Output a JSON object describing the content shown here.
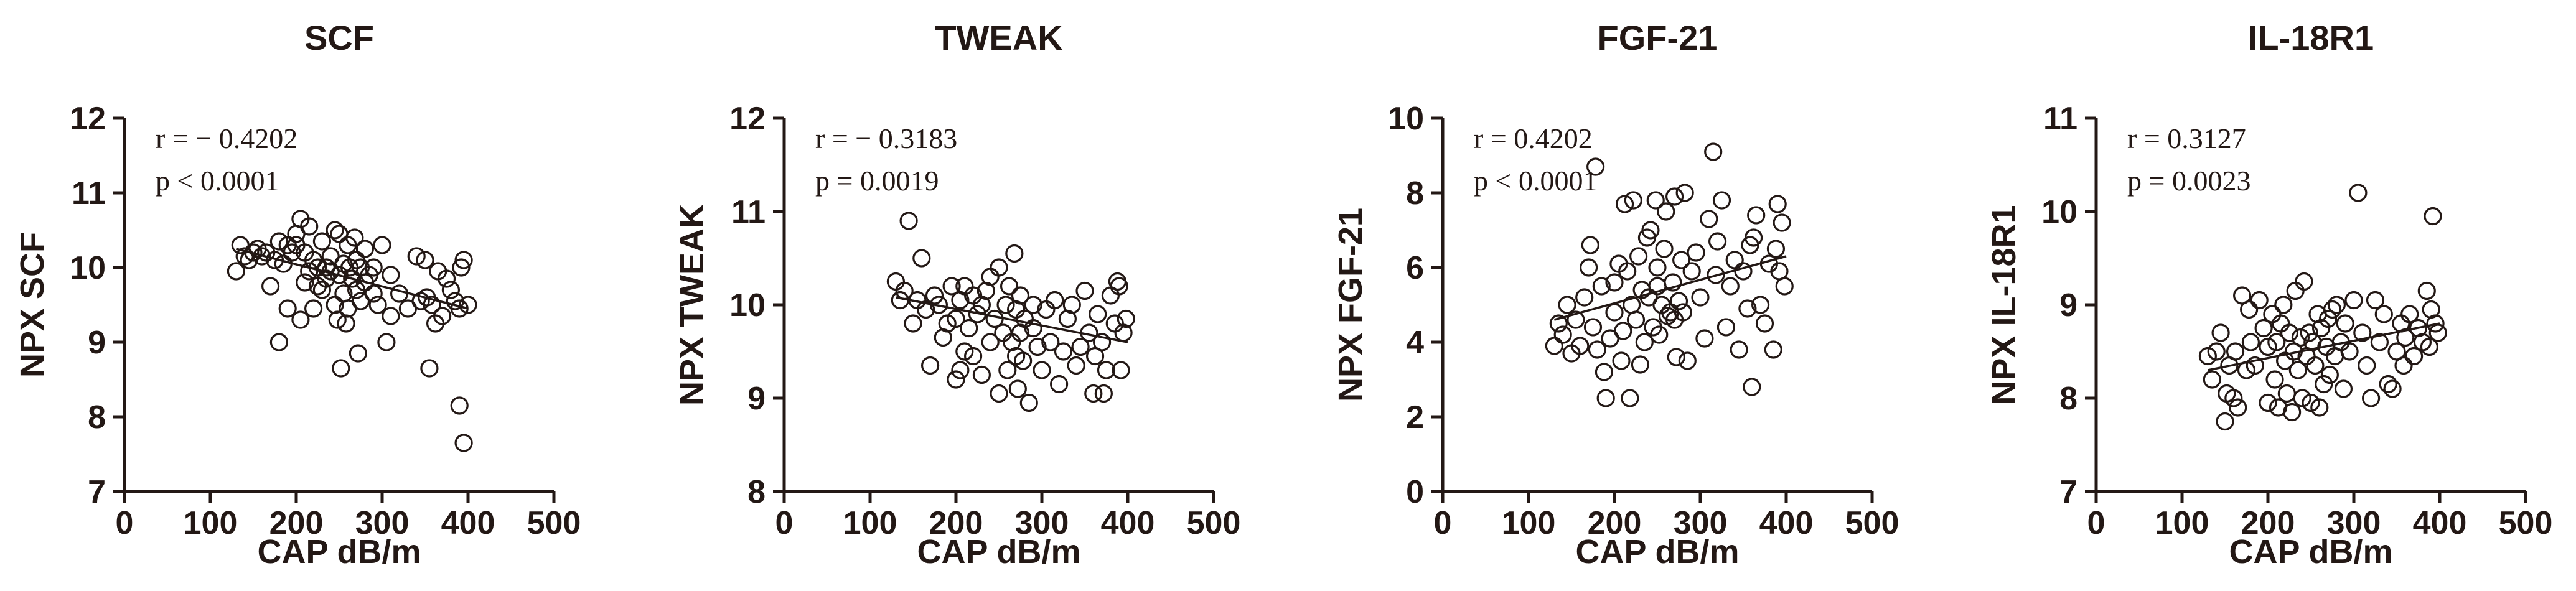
{
  "chart_data": [
    {
      "type": "scatter",
      "title": "SCF",
      "xlabel": "CAP dB/m",
      "ylabel": "NPX  SCF",
      "xlim": [
        0,
        500
      ],
      "ylim": [
        7,
        12
      ],
      "xticks": [
        0,
        100,
        200,
        300,
        400,
        500
      ],
      "yticks": [
        7,
        8,
        9,
        10,
        11,
        12
      ],
      "stats": [
        "r = − 0.4202",
        "p < 0.0001"
      ],
      "fit_line": {
        "x": [
          130,
          400
        ],
        "y": [
          10.25,
          9.45
        ]
      },
      "points": [
        [
          130,
          9.95
        ],
        [
          135,
          10.3
        ],
        [
          140,
          10.15
        ],
        [
          145,
          10.1
        ],
        [
          150,
          10.2
        ],
        [
          155,
          10.25
        ],
        [
          160,
          10.15
        ],
        [
          165,
          10.2
        ],
        [
          170,
          9.75
        ],
        [
          175,
          10.1
        ],
        [
          180,
          10.35
        ],
        [
          180,
          9.0
        ],
        [
          185,
          10.05
        ],
        [
          190,
          10.3
        ],
        [
          190,
          9.45
        ],
        [
          195,
          10.2
        ],
        [
          200,
          10.45
        ],
        [
          200,
          10.3
        ],
        [
          205,
          10.65
        ],
        [
          205,
          9.3
        ],
        [
          210,
          10.2
        ],
        [
          210,
          9.8
        ],
        [
          215,
          10.55
        ],
        [
          215,
          9.95
        ],
        [
          220,
          10.1
        ],
        [
          220,
          9.45
        ],
        [
          225,
          9.75
        ],
        [
          225,
          10.0
        ],
        [
          230,
          10.35
        ],
        [
          230,
          9.7
        ],
        [
          235,
          9.85
        ],
        [
          235,
          10.0
        ],
        [
          240,
          10.15
        ],
        [
          240,
          9.95
        ],
        [
          245,
          10.5
        ],
        [
          245,
          9.5
        ],
        [
          248,
          9.3
        ],
        [
          250,
          10.45
        ],
        [
          250,
          9.9
        ],
        [
          252,
          8.65
        ],
        [
          255,
          10.05
        ],
        [
          255,
          9.65
        ],
        [
          258,
          9.25
        ],
        [
          260,
          10.3
        ],
        [
          260,
          9.45
        ],
        [
          262,
          10.0
        ],
        [
          265,
          9.85
        ],
        [
          268,
          10.4
        ],
        [
          270,
          10.1
        ],
        [
          270,
          9.7
        ],
        [
          272,
          8.85
        ],
        [
          275,
          10.0
        ],
        [
          275,
          9.55
        ],
        [
          280,
          9.8
        ],
        [
          280,
          10.25
        ],
        [
          285,
          9.9
        ],
        [
          290,
          10.0
        ],
        [
          290,
          9.65
        ],
        [
          295,
          9.5
        ],
        [
          300,
          10.3
        ],
        [
          305,
          9.0
        ],
        [
          310,
          9.35
        ],
        [
          310,
          9.9
        ],
        [
          320,
          9.65
        ],
        [
          330,
          9.45
        ],
        [
          340,
          10.15
        ],
        [
          345,
          9.55
        ],
        [
          350,
          10.1
        ],
        [
          352,
          9.6
        ],
        [
          355,
          8.65
        ],
        [
          358,
          9.5
        ],
        [
          362,
          9.25
        ],
        [
          365,
          9.95
        ],
        [
          370,
          9.35
        ],
        [
          375,
          9.85
        ],
        [
          380,
          9.7
        ],
        [
          385,
          9.55
        ],
        [
          390,
          9.45
        ],
        [
          392,
          10.0
        ],
        [
          395,
          10.1
        ],
        [
          390,
          8.15
        ],
        [
          395,
          7.65
        ],
        [
          400,
          9.5
        ]
      ]
    },
    {
      "type": "scatter",
      "title": "TWEAK",
      "xlabel": "CAP dB/m",
      "ylabel": "NPX TWEAK",
      "xlim": [
        0,
        500
      ],
      "ylim": [
        8,
        12
      ],
      "xticks": [
        0,
        100,
        200,
        300,
        400,
        500
      ],
      "yticks": [
        8,
        9,
        10,
        11,
        12
      ],
      "stats": [
        "r = − 0.3183",
        "p = 0.0019"
      ],
      "fit_line": {
        "x": [
          130,
          400
        ],
        "y": [
          10.08,
          9.6
        ]
      },
      "points": [
        [
          130,
          10.25
        ],
        [
          135,
          10.05
        ],
        [
          140,
          10.15
        ],
        [
          145,
          10.9
        ],
        [
          150,
          9.8
        ],
        [
          155,
          10.05
        ],
        [
          160,
          10.5
        ],
        [
          165,
          9.95
        ],
        [
          170,
          9.35
        ],
        [
          175,
          10.1
        ],
        [
          180,
          10.0
        ],
        [
          185,
          9.65
        ],
        [
          190,
          9.8
        ],
        [
          195,
          10.2
        ],
        [
          200,
          9.2
        ],
        [
          200,
          9.85
        ],
        [
          205,
          9.3
        ],
        [
          205,
          10.05
        ],
        [
          210,
          9.5
        ],
        [
          210,
          10.2
        ],
        [
          215,
          9.75
        ],
        [
          220,
          10.1
        ],
        [
          220,
          9.45
        ],
        [
          225,
          9.9
        ],
        [
          230,
          10.0
        ],
        [
          230,
          9.25
        ],
        [
          235,
          10.15
        ],
        [
          240,
          9.6
        ],
        [
          240,
          10.3
        ],
        [
          245,
          9.85
        ],
        [
          250,
          10.4
        ],
        [
          250,
          9.05
        ],
        [
          255,
          9.7
        ],
        [
          258,
          10.0
        ],
        [
          260,
          9.3
        ],
        [
          262,
          10.2
        ],
        [
          265,
          9.6
        ],
        [
          268,
          10.55
        ],
        [
          270,
          9.45
        ],
        [
          270,
          9.95
        ],
        [
          272,
          9.1
        ],
        [
          275,
          10.1
        ],
        [
          275,
          9.7
        ],
        [
          278,
          9.4
        ],
        [
          280,
          9.85
        ],
        [
          285,
          8.95
        ],
        [
          290,
          9.75
        ],
        [
          290,
          10.0
        ],
        [
          295,
          9.55
        ],
        [
          300,
          9.3
        ],
        [
          305,
          9.95
        ],
        [
          310,
          9.6
        ],
        [
          315,
          10.05
        ],
        [
          320,
          9.15
        ],
        [
          325,
          9.5
        ],
        [
          330,
          9.85
        ],
        [
          335,
          10.0
        ],
        [
          340,
          9.35
        ],
        [
          345,
          9.55
        ],
        [
          350,
          10.15
        ],
        [
          355,
          9.7
        ],
        [
          360,
          9.05
        ],
        [
          362,
          9.45
        ],
        [
          365,
          9.9
        ],
        [
          370,
          9.6
        ],
        [
          372,
          9.05
        ],
        [
          375,
          9.3
        ],
        [
          380,
          10.1
        ],
        [
          385,
          9.8
        ],
        [
          388,
          10.25
        ],
        [
          390,
          10.2
        ],
        [
          392,
          9.3
        ],
        [
          395,
          9.7
        ],
        [
          398,
          9.85
        ]
      ]
    },
    {
      "type": "scatter",
      "title": "FGF-21",
      "xlabel": "CAP dB/m",
      "ylabel": "NPX FGF-21",
      "xlim": [
        0,
        500
      ],
      "ylim": [
        0,
        10
      ],
      "xticks": [
        0,
        100,
        200,
        300,
        400,
        500
      ],
      "yticks": [
        0,
        2,
        4,
        6,
        8,
        10
      ],
      "stats": [
        "r = 0.4202",
        "p < 0.0001"
      ],
      "fit_line": {
        "x": [
          130,
          400
        ],
        "y": [
          4.6,
          6.3
        ]
      },
      "points": [
        [
          130,
          3.9
        ],
        [
          135,
          4.5
        ],
        [
          140,
          4.2
        ],
        [
          145,
          5.0
        ],
        [
          150,
          3.7
        ],
        [
          155,
          4.6
        ],
        [
          160,
          3.9
        ],
        [
          165,
          5.2
        ],
        [
          170,
          6.0
        ],
        [
          172,
          6.6
        ],
        [
          175,
          4.4
        ],
        [
          178,
          8.7
        ],
        [
          180,
          3.8
        ],
        [
          185,
          5.5
        ],
        [
          188,
          3.2
        ],
        [
          190,
          2.5
        ],
        [
          195,
          4.1
        ],
        [
          200,
          4.8
        ],
        [
          200,
          5.6
        ],
        [
          205,
          6.1
        ],
        [
          208,
          3.5
        ],
        [
          210,
          4.3
        ],
        [
          212,
          7.7
        ],
        [
          215,
          5.9
        ],
        [
          218,
          2.5
        ],
        [
          220,
          5.0
        ],
        [
          222,
          7.8
        ],
        [
          225,
          4.6
        ],
        [
          228,
          6.3
        ],
        [
          230,
          3.4
        ],
        [
          232,
          5.4
        ],
        [
          235,
          4.0
        ],
        [
          238,
          6.8
        ],
        [
          240,
          5.2
        ],
        [
          242,
          7.0
        ],
        [
          245,
          4.4
        ],
        [
          248,
          7.8
        ],
        [
          250,
          6.0
        ],
        [
          250,
          5.5
        ],
        [
          252,
          4.2
        ],
        [
          255,
          5.0
        ],
        [
          258,
          6.5
        ],
        [
          260,
          7.5
        ],
        [
          262,
          4.7
        ],
        [
          265,
          4.8
        ],
        [
          268,
          5.6
        ],
        [
          270,
          7.9
        ],
        [
          270,
          4.6
        ],
        [
          272,
          3.6
        ],
        [
          275,
          5.1
        ],
        [
          278,
          6.2
        ],
        [
          280,
          4.8
        ],
        [
          282,
          8.0
        ],
        [
          285,
          3.5
        ],
        [
          290,
          5.9
        ],
        [
          295,
          6.4
        ],
        [
          300,
          5.2
        ],
        [
          305,
          4.1
        ],
        [
          310,
          7.3
        ],
        [
          315,
          9.1
        ],
        [
          318,
          5.8
        ],
        [
          320,
          6.7
        ],
        [
          325,
          7.8
        ],
        [
          330,
          4.4
        ],
        [
          335,
          5.5
        ],
        [
          340,
          6.2
        ],
        [
          345,
          3.8
        ],
        [
          350,
          5.9
        ],
        [
          355,
          4.9
        ],
        [
          358,
          6.6
        ],
        [
          360,
          2.8
        ],
        [
          362,
          6.8
        ],
        [
          365,
          7.4
        ],
        [
          370,
          5.0
        ],
        [
          375,
          4.5
        ],
        [
          380,
          6.1
        ],
        [
          385,
          3.8
        ],
        [
          388,
          6.5
        ],
        [
          390,
          7.7
        ],
        [
          392,
          5.9
        ],
        [
          395,
          7.2
        ],
        [
          398,
          5.5
        ]
      ]
    },
    {
      "type": "scatter",
      "title": "IL-18R1",
      "xlabel": "CAP dB/m",
      "ylabel": "NPX IL-18R1",
      "xlim": [
        0,
        500
      ],
      "ylim": [
        7,
        11
      ],
      "xticks": [
        0,
        100,
        200,
        300,
        400,
        500
      ],
      "yticks": [
        7,
        8,
        9,
        10,
        11
      ],
      "stats": [
        "r = 0.3127",
        "p = 0.0023"
      ],
      "fit_line": {
        "x": [
          130,
          400
        ],
        "y": [
          8.3,
          8.8
        ]
      },
      "points": [
        [
          130,
          8.45
        ],
        [
          135,
          8.2
        ],
        [
          140,
          8.5
        ],
        [
          145,
          8.7
        ],
        [
          150,
          7.75
        ],
        [
          152,
          8.05
        ],
        [
          155,
          8.35
        ],
        [
          160,
          8.0
        ],
        [
          162,
          8.5
        ],
        [
          165,
          7.9
        ],
        [
          170,
          9.1
        ],
        [
          175,
          8.3
        ],
        [
          178,
          8.95
        ],
        [
          180,
          8.6
        ],
        [
          185,
          8.35
        ],
        [
          190,
          9.05
        ],
        [
          195,
          8.75
        ],
        [
          200,
          8.55
        ],
        [
          200,
          7.95
        ],
        [
          205,
          8.9
        ],
        [
          208,
          8.2
        ],
        [
          210,
          8.6
        ],
        [
          212,
          7.9
        ],
        [
          215,
          8.8
        ],
        [
          218,
          9.0
        ],
        [
          220,
          8.4
        ],
        [
          222,
          8.05
        ],
        [
          225,
          8.7
        ],
        [
          228,
          7.85
        ],
        [
          230,
          8.5
        ],
        [
          232,
          9.15
        ],
        [
          235,
          8.3
        ],
        [
          238,
          8.65
        ],
        [
          240,
          8.0
        ],
        [
          242,
          9.25
        ],
        [
          245,
          8.45
        ],
        [
          248,
          8.7
        ],
        [
          250,
          7.95
        ],
        [
          252,
          8.6
        ],
        [
          255,
          8.35
        ],
        [
          258,
          8.9
        ],
        [
          260,
          7.9
        ],
        [
          262,
          8.75
        ],
        [
          265,
          8.15
        ],
        [
          268,
          8.55
        ],
        [
          270,
          8.85
        ],
        [
          272,
          8.25
        ],
        [
          275,
          8.95
        ],
        [
          278,
          8.45
        ],
        [
          280,
          9.0
        ],
        [
          285,
          8.6
        ],
        [
          288,
          8.1
        ],
        [
          290,
          8.8
        ],
        [
          295,
          8.5
        ],
        [
          300,
          9.05
        ],
        [
          305,
          10.2
        ],
        [
          310,
          8.7
        ],
        [
          315,
          8.35
        ],
        [
          320,
          8.0
        ],
        [
          325,
          9.05
        ],
        [
          330,
          8.6
        ],
        [
          335,
          8.9
        ],
        [
          340,
          8.15
        ],
        [
          345,
          8.1
        ],
        [
          350,
          8.5
        ],
        [
          355,
          8.8
        ],
        [
          358,
          8.35
        ],
        [
          360,
          8.65
        ],
        [
          365,
          8.9
        ],
        [
          370,
          8.45
        ],
        [
          375,
          8.75
        ],
        [
          380,
          8.6
        ],
        [
          385,
          9.15
        ],
        [
          388,
          8.55
        ],
        [
          390,
          8.95
        ],
        [
          392,
          9.95
        ],
        [
          395,
          8.8
        ],
        [
          398,
          8.7
        ]
      ]
    }
  ]
}
